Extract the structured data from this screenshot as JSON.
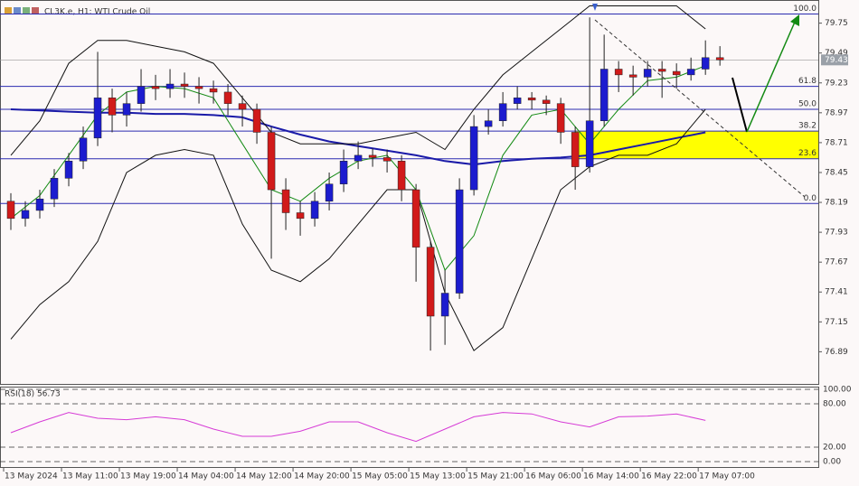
{
  "chart_data": {
    "type": "candlestick",
    "title": "CL3K.e, H1: WTI Crude Oil",
    "x": [
      4,
      6,
      8,
      10,
      12,
      14,
      16,
      18,
      20,
      22,
      24,
      26,
      28,
      30,
      32,
      34,
      36,
      38,
      40,
      42,
      44,
      46,
      48,
      50,
      52,
      54,
      56,
      58,
      60,
      62,
      64,
      66,
      68,
      70,
      72,
      74,
      76,
      78,
      80,
      82,
      84,
      86,
      88,
      90,
      92,
      94,
      96,
      98,
      100,
      102
    ],
    "open": [
      78.2,
      78.05,
      78.12,
      78.22,
      78.4,
      78.55,
      78.75,
      79.1,
      78.95,
      79.05,
      79.2,
      79.18,
      79.22,
      79.2,
      79.18,
      79.15,
      79.05,
      79.0,
      78.8,
      78.3,
      78.1,
      78.05,
      78.2,
      78.35,
      78.55,
      78.6,
      78.58,
      78.55,
      78.3,
      77.8,
      77.2,
      77.4,
      78.3,
      78.85,
      78.9,
      79.05,
      79.1,
      79.08,
      79.05,
      78.8,
      78.5,
      78.9,
      79.35,
      79.3,
      79.28,
      79.35,
      79.33,
      79.3,
      79.35,
      79.45
    ],
    "high": [
      78.27,
      78.2,
      78.3,
      78.48,
      78.62,
      78.85,
      79.5,
      79.18,
      79.15,
      79.35,
      79.3,
      79.35,
      79.32,
      79.28,
      79.25,
      79.22,
      79.12,
      79.05,
      78.85,
      78.4,
      78.2,
      78.28,
      78.45,
      78.65,
      78.72,
      78.66,
      78.65,
      78.6,
      78.35,
      77.85,
      77.6,
      78.4,
      78.95,
      79.0,
      79.15,
      79.2,
      79.15,
      79.12,
      79.1,
      78.85,
      79.8,
      79.65,
      79.42,
      79.38,
      79.42,
      79.42,
      79.4,
      79.45,
      79.6,
      79.55
    ],
    "low": [
      77.95,
      77.98,
      78.05,
      78.15,
      78.33,
      78.48,
      78.68,
      78.8,
      78.85,
      78.98,
      79.08,
      79.1,
      79.1,
      79.05,
      79.05,
      78.95,
      78.85,
      78.7,
      77.7,
      77.95,
      77.9,
      77.98,
      78.12,
      78.28,
      78.48,
      78.5,
      78.45,
      78.2,
      77.5,
      76.9,
      76.95,
      77.35,
      78.25,
      78.78,
      78.85,
      79.0,
      79.0,
      78.95,
      78.7,
      78.3,
      78.45,
      78.85,
      79.15,
      79.12,
      79.2,
      79.1,
      79.18,
      79.25,
      79.3,
      79.38
    ],
    "close": [
      78.05,
      78.12,
      78.22,
      78.4,
      78.55,
      78.75,
      79.1,
      78.95,
      79.05,
      79.2,
      79.18,
      79.22,
      79.2,
      79.18,
      79.15,
      79.05,
      79.0,
      78.8,
      78.3,
      78.1,
      78.05,
      78.2,
      78.35,
      78.55,
      78.6,
      78.58,
      78.55,
      78.3,
      77.8,
      77.2,
      77.4,
      78.3,
      78.85,
      78.9,
      79.05,
      79.1,
      79.08,
      79.05,
      78.8,
      78.5,
      78.9,
      79.35,
      79.3,
      79.28,
      79.35,
      79.33,
      79.3,
      79.35,
      79.45,
      79.43
    ],
    "up_color": "#1c1ccf",
    "down_color": "#d11a1a",
    "xlim": [
      2.5,
      115.6
    ],
    "xticks": [
      {
        "value": 3,
        "label": "13 May 2024"
      },
      {
        "value": 11,
        "label": "13 May 11:00"
      },
      {
        "value": 19,
        "label": "13 May 19:00"
      },
      {
        "value": 27,
        "label": "14 May 04:00"
      },
      {
        "value": 35,
        "label": "14 May 12:00"
      },
      {
        "value": 43,
        "label": "14 May 20:00"
      },
      {
        "value": 51,
        "label": "15 May 05:00"
      },
      {
        "value": 59,
        "label": "15 May 13:00"
      },
      {
        "value": 67,
        "label": "15 May 21:00"
      },
      {
        "value": 75,
        "label": "16 May 06:00"
      },
      {
        "value": 83,
        "label": "16 May 14:00"
      },
      {
        "value": 91,
        "label": "16 May 22:00"
      },
      {
        "value": 99,
        "label": "17 May 07:00"
      }
    ],
    "ylim": [
      76.61,
      79.92
    ],
    "yticks": [
      79.75,
      79.49,
      79.23,
      78.97,
      78.71,
      78.45,
      78.19,
      77.93,
      77.67,
      77.41,
      77.15,
      76.89
    ],
    "last_price": 79.43,
    "line_x": [
      4,
      8,
      12,
      16,
      20,
      24,
      28,
      32,
      36,
      40,
      44,
      48,
      52,
      56,
      60,
      64,
      68,
      72,
      76,
      80,
      84,
      88,
      92,
      96,
      100
    ],
    "lines": [
      {
        "color": "#1a1aa8",
        "values": [
          79.0,
          78.99,
          78.98,
          78.97,
          78.97,
          78.96,
          78.96,
          78.95,
          78.93,
          78.85,
          78.78,
          78.72,
          78.68,
          78.64,
          78.6,
          78.55,
          78.52,
          78.55,
          78.57,
          78.58,
          78.6,
          78.65,
          78.7,
          78.75,
          78.8
        ]
      },
      {
        "color": "#111111",
        "values": [
          78.6,
          78.9,
          79.4,
          79.6,
          79.6,
          79.55,
          79.5,
          79.4,
          79.1,
          78.8,
          78.7,
          78.7,
          78.7,
          78.75,
          78.8,
          78.65,
          79.0,
          79.3,
          79.5,
          79.7,
          79.9,
          79.9,
          79.9,
          79.9,
          79.7
        ]
      },
      {
        "color": "#111111",
        "values": [
          77.0,
          77.3,
          77.5,
          77.85,
          78.45,
          78.6,
          78.65,
          78.6,
          78.0,
          77.6,
          77.5,
          77.7,
          78.0,
          78.3,
          78.3,
          77.4,
          76.9,
          77.1,
          77.7,
          78.3,
          78.5,
          78.6,
          78.6,
          78.7,
          79.0
        ]
      },
      {
        "color": "#138a13",
        "values": [
          78.05,
          78.25,
          78.6,
          78.95,
          79.15,
          79.2,
          79.18,
          79.1,
          78.7,
          78.3,
          78.2,
          78.4,
          78.55,
          78.6,
          78.3,
          77.6,
          77.9,
          78.6,
          78.95,
          79.0,
          78.7,
          79.0,
          79.25,
          79.28,
          79.38
        ]
      }
    ],
    "fib_levels": [
      {
        "value": 79.83,
        "label": "100.0"
      },
      {
        "value": 79.2,
        "label": "61.8"
      },
      {
        "value": 79.0,
        "label": "50.0"
      },
      {
        "value": 78.81,
        "label": "38.2"
      },
      {
        "value": 78.57,
        "label": "23.6"
      },
      {
        "value": 78.18,
        "label": "0.0"
      }
    ],
    "fib_zone_color": "#ffff00",
    "rsi": {
      "title": "RSI(18) 56.73",
      "color": "#d63bd6",
      "values": [
        40,
        55,
        68,
        60,
        58,
        62,
        58,
        45,
        35,
        35,
        42,
        55,
        55,
        40,
        28,
        45,
        62,
        68,
        66,
        55,
        48,
        62,
        63,
        66,
        57
      ],
      "ylim": [
        0,
        100
      ],
      "yticks": [
        {
          "value": 100,
          "label": "100.00"
        },
        {
          "value": 80,
          "label": "80.00"
        },
        {
          "value": 20,
          "label": "20.00"
        },
        {
          "value": 0,
          "label": "0.00"
        }
      ]
    }
  }
}
